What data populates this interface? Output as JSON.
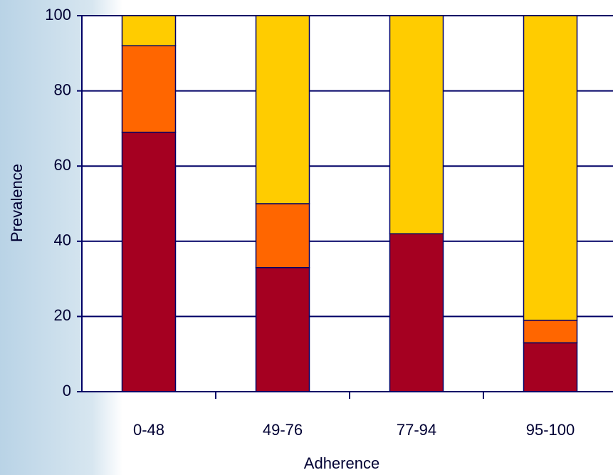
{
  "chart_data": {
    "type": "stacked-bar",
    "x_label": "Adherence",
    "y_label": "Prevalence",
    "categories": [
      "0-48",
      "49-76",
      "77-94",
      "95-100"
    ],
    "series": [
      {
        "color": "#a50021",
        "values": [
          69,
          33,
          42,
          13
        ]
      },
      {
        "color": "#ff6600",
        "values": [
          23,
          17,
          0,
          6
        ]
      },
      {
        "color": "#ffcc00",
        "values": [
          8,
          50,
          58,
          81
        ]
      }
    ],
    "ylim": [
      0,
      100
    ],
    "yticks": [
      0,
      20,
      40,
      60,
      80,
      100
    ],
    "grid": true,
    "axis_color": "#000066"
  }
}
